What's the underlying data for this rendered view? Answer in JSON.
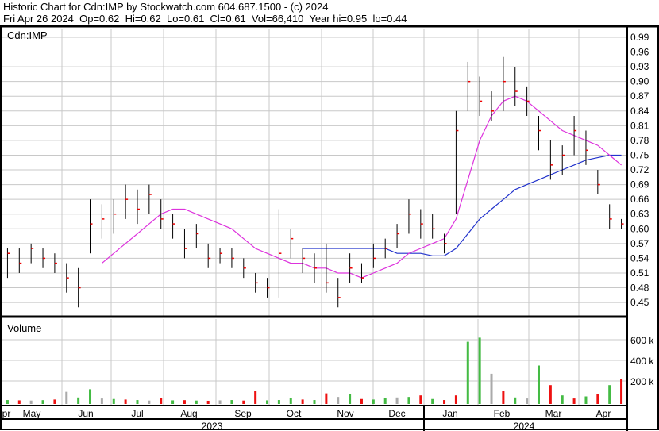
{
  "header": {
    "title": "Historic Chart for Cdn:IMP by Stockwatch.com 604.687.1500 - (c) 2024",
    "quote": "Fri Apr 26 2024  Op=0.62  Hi=0.62  Lo=0.61  Cl=0.61  Vol=66,410  Year hi=0.95  lo=0.44"
  },
  "colors": {
    "up": "#44bb44",
    "down": "#ee1111",
    "flat": "#aaaaaa",
    "ma_short": "#dd33dd",
    "ma_long": "#2233cc",
    "grid": "#c8c8c8"
  },
  "chart_data": [
    {
      "type": "ohlc",
      "title": "Cdn:IMP",
      "ylim": [
        0.43,
        1.0
      ],
      "grid": true,
      "yticks": [
        "0.99",
        "0.96",
        "0.93",
        "0.90",
        "0.87",
        "0.84",
        "0.81",
        "0.78",
        "0.75",
        "0.72",
        "0.69",
        "0.66",
        "0.63",
        "0.60",
        "0.57",
        "0.54",
        "0.51",
        "0.48",
        "0.45"
      ],
      "x": [
        "2023-04-24",
        "2023-05-01",
        "2023-05-08",
        "2023-05-15",
        "2023-05-22",
        "2023-05-29",
        "2023-06-05",
        "2023-06-12",
        "2023-06-19",
        "2023-06-26",
        "2023-07-03",
        "2023-07-10",
        "2023-07-17",
        "2023-07-24",
        "2023-07-31",
        "2023-08-07",
        "2023-08-14",
        "2023-08-21",
        "2023-08-28",
        "2023-09-04",
        "2023-09-11",
        "2023-09-18",
        "2023-09-25",
        "2023-10-02",
        "2023-10-09",
        "2023-10-16",
        "2023-10-23",
        "2023-10-30",
        "2023-11-06",
        "2023-11-13",
        "2023-11-20",
        "2023-11-27",
        "2023-12-04",
        "2023-12-11",
        "2023-12-18",
        "2023-12-25",
        "2024-01-01",
        "2024-01-08",
        "2024-01-15",
        "2024-01-22",
        "2024-01-29",
        "2024-02-05",
        "2024-02-12",
        "2024-02-19",
        "2024-02-26",
        "2024-03-04",
        "2024-03-11",
        "2024-03-18",
        "2024-03-25",
        "2024-04-01",
        "2024-04-08",
        "2024-04-15",
        "2024-04-22"
      ],
      "high": [
        0.56,
        0.56,
        0.57,
        0.56,
        0.55,
        0.53,
        0.52,
        0.66,
        0.65,
        0.66,
        0.69,
        0.68,
        0.69,
        0.66,
        0.63,
        0.6,
        0.61,
        0.57,
        0.56,
        0.56,
        0.54,
        0.51,
        0.5,
        0.64,
        0.6,
        0.56,
        0.55,
        0.57,
        0.5,
        0.55,
        0.53,
        0.57,
        0.58,
        0.61,
        0.66,
        0.64,
        0.63,
        0.59,
        0.84,
        0.94,
        0.91,
        0.88,
        0.95,
        0.93,
        0.89,
        0.83,
        0.78,
        0.77,
        0.83,
        0.8,
        0.72,
        0.65,
        0.62
      ],
      "low": [
        0.5,
        0.51,
        0.53,
        0.52,
        0.51,
        0.47,
        0.44,
        0.55,
        0.58,
        0.59,
        0.62,
        0.61,
        0.63,
        0.6,
        0.58,
        0.54,
        0.56,
        0.52,
        0.53,
        0.52,
        0.5,
        0.47,
        0.46,
        0.46,
        0.54,
        0.51,
        0.49,
        0.47,
        0.44,
        0.49,
        0.49,
        0.52,
        0.54,
        0.56,
        0.59,
        0.58,
        0.58,
        0.55,
        0.63,
        0.84,
        0.83,
        0.82,
        0.84,
        0.85,
        0.83,
        0.76,
        0.7,
        0.71,
        0.75,
        0.73,
        0.67,
        0.6,
        0.6
      ],
      "close": [
        0.55,
        0.53,
        0.56,
        0.54,
        0.53,
        0.5,
        0.48,
        0.61,
        0.62,
        0.63,
        0.66,
        0.64,
        0.67,
        0.62,
        0.61,
        0.56,
        0.59,
        0.54,
        0.55,
        0.54,
        0.52,
        0.49,
        0.48,
        0.55,
        0.58,
        0.54,
        0.52,
        0.49,
        0.46,
        0.52,
        0.5,
        0.54,
        0.56,
        0.59,
        0.63,
        0.61,
        0.6,
        0.57,
        0.8,
        0.9,
        0.86,
        0.84,
        0.9,
        0.88,
        0.86,
        0.8,
        0.73,
        0.75,
        0.8,
        0.76,
        0.69,
        0.62,
        0.61
      ],
      "ma_short": [
        null,
        null,
        null,
        null,
        null,
        null,
        null,
        null,
        0.53,
        0.55,
        0.57,
        0.59,
        0.61,
        0.63,
        0.64,
        0.64,
        0.63,
        0.62,
        0.61,
        0.6,
        0.58,
        0.56,
        0.55,
        0.54,
        0.53,
        0.53,
        0.52,
        0.52,
        0.51,
        0.51,
        0.5,
        0.51,
        0.52,
        0.53,
        0.55,
        0.56,
        0.57,
        0.58,
        0.62,
        0.7,
        0.78,
        0.83,
        0.86,
        0.87,
        0.86,
        0.84,
        0.82,
        0.8,
        0.79,
        0.78,
        0.77,
        0.75,
        0.73
      ],
      "ma_long": [
        null,
        null,
        null,
        null,
        null,
        null,
        null,
        null,
        null,
        null,
        null,
        null,
        null,
        null,
        null,
        null,
        null,
        null,
        null,
        null,
        null,
        null,
        null,
        null,
        null,
        0.56,
        0.56,
        0.56,
        0.56,
        0.56,
        0.56,
        0.56,
        0.56,
        0.55,
        0.55,
        0.55,
        0.545,
        0.545,
        0.56,
        0.59,
        0.62,
        0.64,
        0.66,
        0.68,
        0.69,
        0.7,
        0.71,
        0.72,
        0.73,
        0.74,
        0.745,
        0.75,
        0.75
      ],
      "months": [
        "pr",
        "May",
        "Jun",
        "Jul",
        "Aug",
        "Sep",
        "Oct",
        "Nov",
        "Dec",
        "Jan",
        "Feb",
        "Mar",
        "Apr"
      ],
      "years": [
        "2023",
        "2024"
      ]
    },
    {
      "type": "bar",
      "title": "Volume",
      "unit": "k",
      "ylim": [
        0,
        700
      ],
      "yticks": [
        "600 k",
        "400 k",
        "200 k"
      ],
      "values": [
        15,
        12,
        10,
        14,
        20,
        95,
        40,
        120,
        30,
        25,
        20,
        15,
        10,
        35,
        12,
        14,
        10,
        8,
        12,
        15,
        10,
        100,
        12,
        15,
        35,
        20,
        15,
        80,
        45,
        70,
        25,
        20,
        35,
        40,
        45,
        60,
        25,
        15,
        60,
        580,
        620,
        270,
        100,
        40,
        30,
        350,
        160,
        60,
        30,
        50,
        75,
        160,
        220
      ],
      "direction": [
        "up",
        "down",
        "flat",
        "up",
        "down",
        "flat",
        "up",
        "up",
        "flat",
        "up",
        "down",
        "up",
        "flat",
        "down",
        "up",
        "down",
        "up",
        "down",
        "flat",
        "up",
        "down",
        "down",
        "up",
        "up",
        "up",
        "down",
        "up",
        "down",
        "flat",
        "up",
        "down",
        "up",
        "up",
        "flat",
        "up",
        "down",
        "up",
        "down",
        "down",
        "up",
        "up",
        "flat",
        "down",
        "up",
        "flat",
        "up",
        "down",
        "up",
        "down",
        "up",
        "down",
        "up",
        "down"
      ]
    }
  ]
}
